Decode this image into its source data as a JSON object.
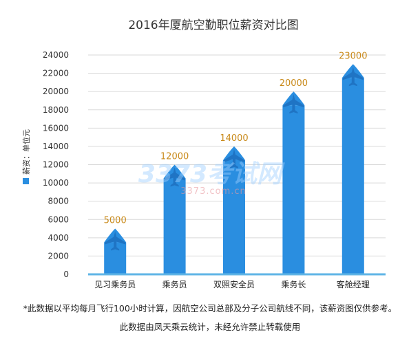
{
  "chart_data": {
    "type": "bar",
    "title": "2016年厦航空勤职位薪资对比图",
    "categories": [
      "见习乘务员",
      "乘务员",
      "双照安全员",
      "乘务长",
      "客舱经理"
    ],
    "values": [
      5000,
      12000,
      14000,
      20000,
      23000
    ],
    "data_labels": [
      "5000",
      "12000",
      "14000",
      "20000",
      "23000"
    ],
    "ylim": [
      0,
      24000
    ],
    "yticks": [
      0,
      2000,
      4000,
      6000,
      8000,
      10000,
      12000,
      14000,
      16000,
      18000,
      20000,
      22000,
      24000
    ],
    "legend": {
      "label": "薪资：单位元",
      "placement": "left-vertical"
    },
    "grid": true,
    "bar_color": "#2a8ee0",
    "bar_top_color": "#1f74c4",
    "label_color": "#c98a1a",
    "baseline_color": "#5fb4e6"
  },
  "watermark": {
    "main": "3373考试网",
    "sub": "3373.com.cn"
  },
  "footnote_1": "*此数据以平均每月飞行100小时计算，因航空公司总部及分子公司航线不同，该薪资图仅供参考。",
  "footnote_2": "此数据由凤天乘云统计，未经允许禁止转载使用"
}
